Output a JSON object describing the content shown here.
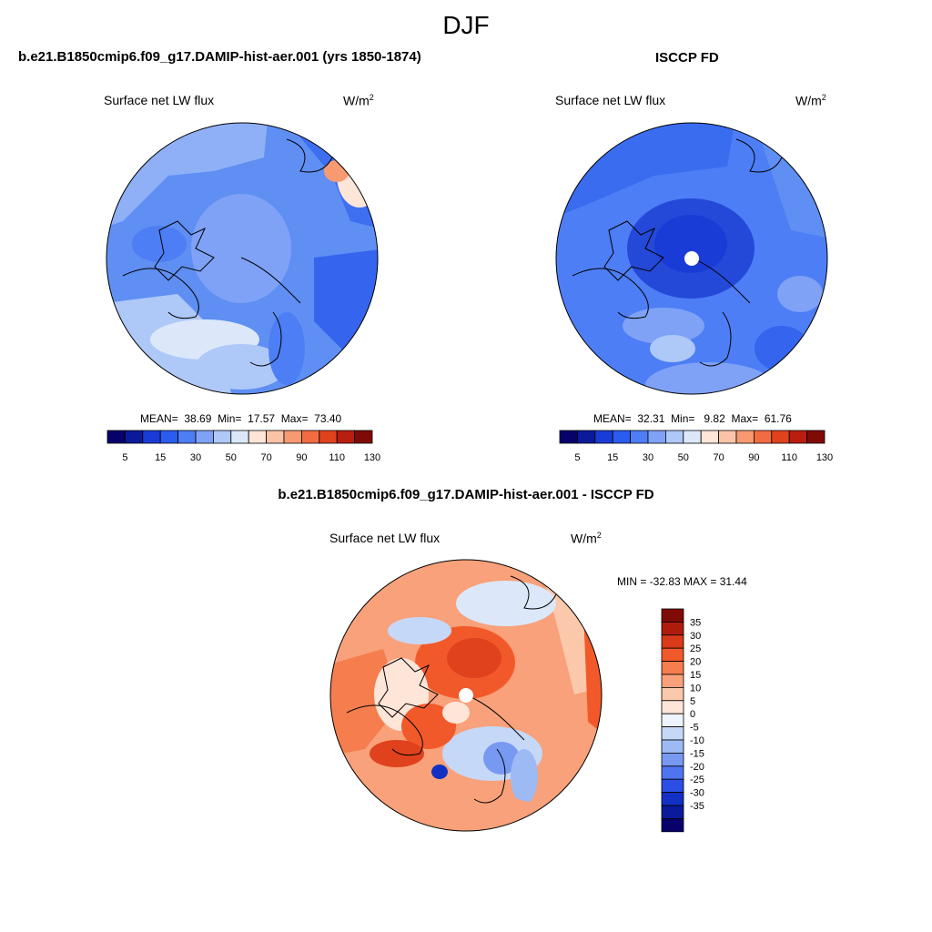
{
  "figure": {
    "title": "DJF"
  },
  "panels": [
    {
      "title": "b.e21.B1850cmip6.f09_g17.DAMIP-hist-aer.001 (yrs 1850-1874)",
      "left_label": "Surface net LW flux",
      "units_base": "W/m",
      "units_exp": "2",
      "stats": {
        "mean_label": "MEAN=",
        "mean": "38.69",
        "min_label": "Min=",
        "min": "17.57",
        "max_label": "Max=",
        "max": "73.40"
      },
      "pole_hole": false
    },
    {
      "title": "ISCCP FD",
      "left_label": "Surface net LW flux",
      "units_base": "W/m",
      "units_exp": "2",
      "stats": {
        "mean_label": "MEAN=",
        "mean": "32.31",
        "min_label": "Min=",
        "min": "9.82",
        "max_label": "Max=",
        "max": "61.76"
      },
      "pole_hole": true
    },
    {
      "title": "b.e21.B1850cmip6.f09_g17.DAMIP-hist-aer.001 - ISCCP FD",
      "left_label": "Surface net LW flux",
      "units_base": "W/m",
      "units_exp": "2",
      "stats_text": "MIN = -32.83 MAX =  31.44",
      "pole_hole": true
    }
  ],
  "colorbar_abs": {
    "colors": [
      "#08006b",
      "#0a1a9a",
      "#1a3cd6",
      "#2a5cf0",
      "#4d7ef5",
      "#7fa2f7",
      "#aec8f8",
      "#dce8fa",
      "#fde5d8",
      "#fbc4a8",
      "#f79a72",
      "#f26c42",
      "#e0421e",
      "#b81f0e",
      "#800a05"
    ],
    "tick_labels": [
      "5",
      "15",
      "30",
      "50",
      "70",
      "90",
      "110",
      "130"
    ]
  },
  "colorbar_diff": {
    "colors_top_to_bottom": [
      "#800a05",
      "#b01c0c",
      "#d83a1a",
      "#f2592a",
      "#f57d4e",
      "#f8a17a",
      "#fbc8ab",
      "#fde5d8",
      "#eef4fc",
      "#c6d8f8",
      "#9dbaf5",
      "#7899f2",
      "#4f74ef",
      "#2a4ee6",
      "#1330c4",
      "#0a1a9a",
      "#08006b"
    ],
    "labels_top_to_bottom": [
      "35",
      "30",
      "25",
      "20",
      "15",
      "10",
      "5",
      "0",
      "-5",
      "-10",
      "-15",
      "-20",
      "-25",
      "-30",
      "-35"
    ]
  }
}
